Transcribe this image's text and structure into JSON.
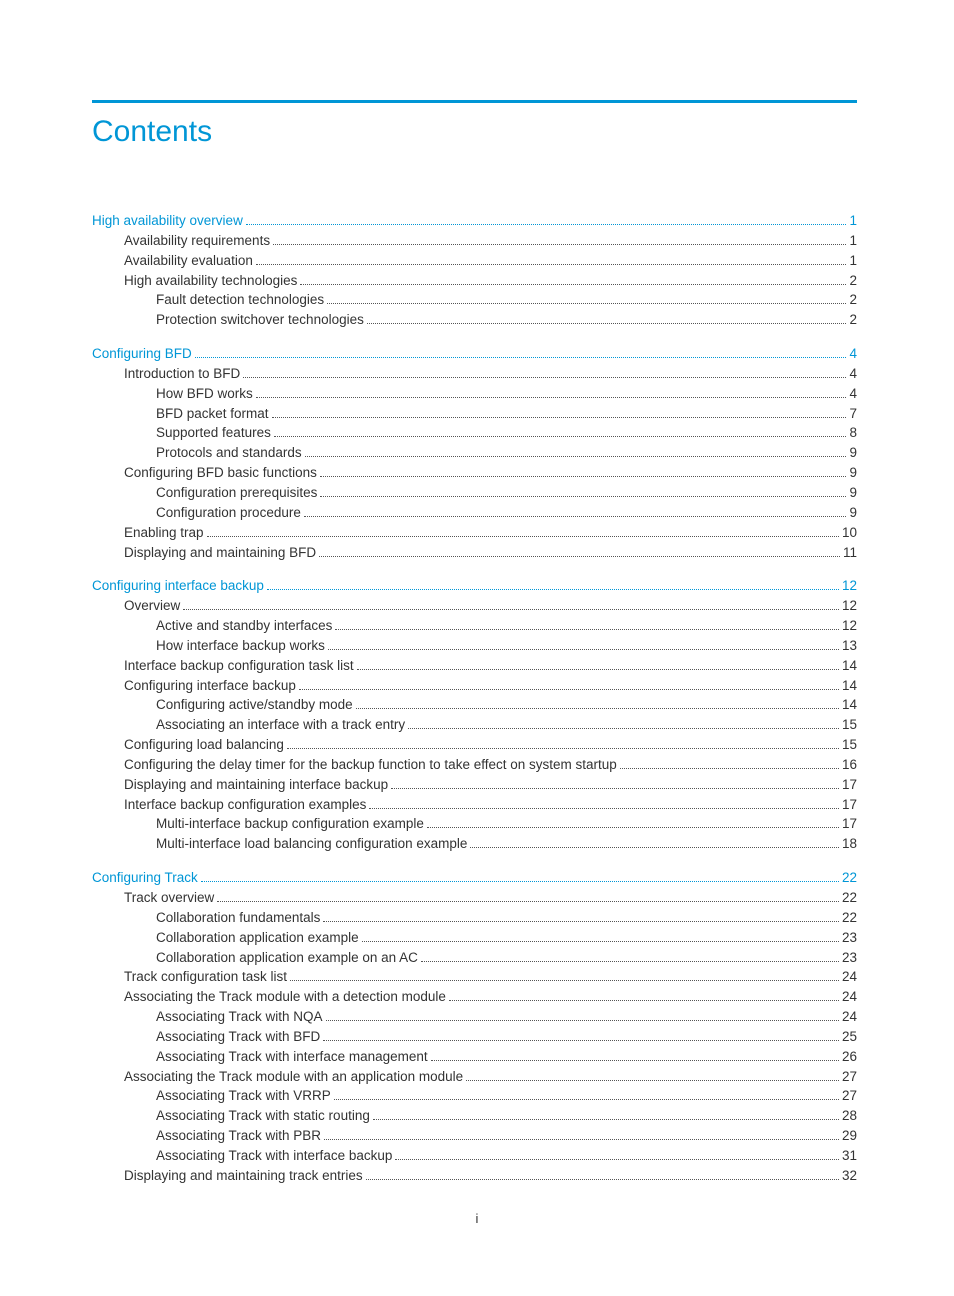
{
  "colors": {
    "accent": "#0096d6",
    "text": "#333333",
    "dots": "#555555"
  },
  "title": "Contents",
  "footer": "i",
  "toc": [
    {
      "type": "entry",
      "level": 0,
      "accent": true,
      "label": "High availability overview",
      "page": "1"
    },
    {
      "type": "entry",
      "level": 1,
      "accent": false,
      "label": "Availability requirements",
      "page": "1"
    },
    {
      "type": "entry",
      "level": 1,
      "accent": false,
      "label": "Availability evaluation",
      "page": "1"
    },
    {
      "type": "entry",
      "level": 1,
      "accent": false,
      "label": "High availability technologies",
      "page": "2"
    },
    {
      "type": "entry",
      "level": 2,
      "accent": false,
      "label": "Fault detection technologies",
      "page": "2"
    },
    {
      "type": "entry",
      "level": 2,
      "accent": false,
      "label": "Protection switchover technologies",
      "page": "2"
    },
    {
      "type": "gap"
    },
    {
      "type": "entry",
      "level": 0,
      "accent": true,
      "label": "Configuring BFD",
      "page": "4"
    },
    {
      "type": "entry",
      "level": 1,
      "accent": false,
      "label": "Introduction to BFD",
      "page": "4"
    },
    {
      "type": "entry",
      "level": 2,
      "accent": false,
      "label": "How BFD works",
      "page": "4"
    },
    {
      "type": "entry",
      "level": 2,
      "accent": false,
      "label": "BFD packet format",
      "page": "7"
    },
    {
      "type": "entry",
      "level": 2,
      "accent": false,
      "label": "Supported features",
      "page": "8"
    },
    {
      "type": "entry",
      "level": 2,
      "accent": false,
      "label": "Protocols and standards",
      "page": "9"
    },
    {
      "type": "entry",
      "level": 1,
      "accent": false,
      "label": "Configuring BFD basic functions",
      "page": "9"
    },
    {
      "type": "entry",
      "level": 2,
      "accent": false,
      "label": "Configuration prerequisites",
      "page": "9"
    },
    {
      "type": "entry",
      "level": 2,
      "accent": false,
      "label": "Configuration procedure",
      "page": "9"
    },
    {
      "type": "entry",
      "level": 1,
      "accent": false,
      "label": "Enabling trap",
      "page": "10"
    },
    {
      "type": "entry",
      "level": 1,
      "accent": false,
      "label": "Displaying and maintaining BFD",
      "page": "11"
    },
    {
      "type": "gap"
    },
    {
      "type": "entry",
      "level": 0,
      "accent": true,
      "label": "Configuring interface backup",
      "page": "12"
    },
    {
      "type": "entry",
      "level": 1,
      "accent": false,
      "label": "Overview",
      "page": "12"
    },
    {
      "type": "entry",
      "level": 2,
      "accent": false,
      "label": "Active and standby interfaces",
      "page": "12"
    },
    {
      "type": "entry",
      "level": 2,
      "accent": false,
      "label": "How interface backup works",
      "page": "13"
    },
    {
      "type": "entry",
      "level": 1,
      "accent": false,
      "label": "Interface backup configuration task list",
      "page": "14"
    },
    {
      "type": "entry",
      "level": 1,
      "accent": false,
      "label": "Configuring interface backup",
      "page": "14"
    },
    {
      "type": "entry",
      "level": 2,
      "accent": false,
      "label": "Configuring active/standby mode",
      "page": "14"
    },
    {
      "type": "entry",
      "level": 2,
      "accent": false,
      "label": "Associating an interface with a track entry",
      "page": "15"
    },
    {
      "type": "entry",
      "level": 1,
      "accent": false,
      "label": "Configuring load balancing",
      "page": "15"
    },
    {
      "type": "entry",
      "level": 1,
      "accent": false,
      "label": "Configuring the delay timer for the backup function to take effect on system startup",
      "page": "16"
    },
    {
      "type": "entry",
      "level": 1,
      "accent": false,
      "label": "Displaying and maintaining interface backup",
      "page": "17"
    },
    {
      "type": "entry",
      "level": 1,
      "accent": false,
      "label": "Interface backup configuration examples",
      "page": "17"
    },
    {
      "type": "entry",
      "level": 2,
      "accent": false,
      "label": "Multi-interface backup configuration example",
      "page": "17"
    },
    {
      "type": "entry",
      "level": 2,
      "accent": false,
      "label": "Multi-interface load balancing configuration example",
      "page": "18"
    },
    {
      "type": "gap"
    },
    {
      "type": "entry",
      "level": 0,
      "accent": true,
      "label": "Configuring Track",
      "page": "22"
    },
    {
      "type": "entry",
      "level": 1,
      "accent": false,
      "label": "Track overview",
      "page": "22"
    },
    {
      "type": "entry",
      "level": 2,
      "accent": false,
      "label": "Collaboration fundamentals",
      "page": "22"
    },
    {
      "type": "entry",
      "level": 2,
      "accent": false,
      "label": "Collaboration application example",
      "page": "23"
    },
    {
      "type": "entry",
      "level": 2,
      "accent": false,
      "label": "Collaboration application example on an AC",
      "page": "23"
    },
    {
      "type": "entry",
      "level": 1,
      "accent": false,
      "label": "Track configuration task list",
      "page": "24"
    },
    {
      "type": "entry",
      "level": 1,
      "accent": false,
      "label": "Associating the Track module with a detection module",
      "page": "24"
    },
    {
      "type": "entry",
      "level": 2,
      "accent": false,
      "label": "Associating Track with NQA",
      "page": "24"
    },
    {
      "type": "entry",
      "level": 2,
      "accent": false,
      "label": "Associating Track with BFD",
      "page": "25"
    },
    {
      "type": "entry",
      "level": 2,
      "accent": false,
      "label": "Associating Track with interface management",
      "page": "26"
    },
    {
      "type": "entry",
      "level": 1,
      "accent": false,
      "label": "Associating the Track module with an application module",
      "page": "27"
    },
    {
      "type": "entry",
      "level": 2,
      "accent": false,
      "label": "Associating Track with VRRP",
      "page": "27"
    },
    {
      "type": "entry",
      "level": 2,
      "accent": false,
      "label": "Associating Track with static routing",
      "page": "28"
    },
    {
      "type": "entry",
      "level": 2,
      "accent": false,
      "label": "Associating Track with PBR",
      "page": "29"
    },
    {
      "type": "entry",
      "level": 2,
      "accent": false,
      "label": "Associating Track with interface backup",
      "page": "31"
    },
    {
      "type": "entry",
      "level": 1,
      "accent": false,
      "label": "Displaying and maintaining track entries",
      "page": "32"
    }
  ]
}
